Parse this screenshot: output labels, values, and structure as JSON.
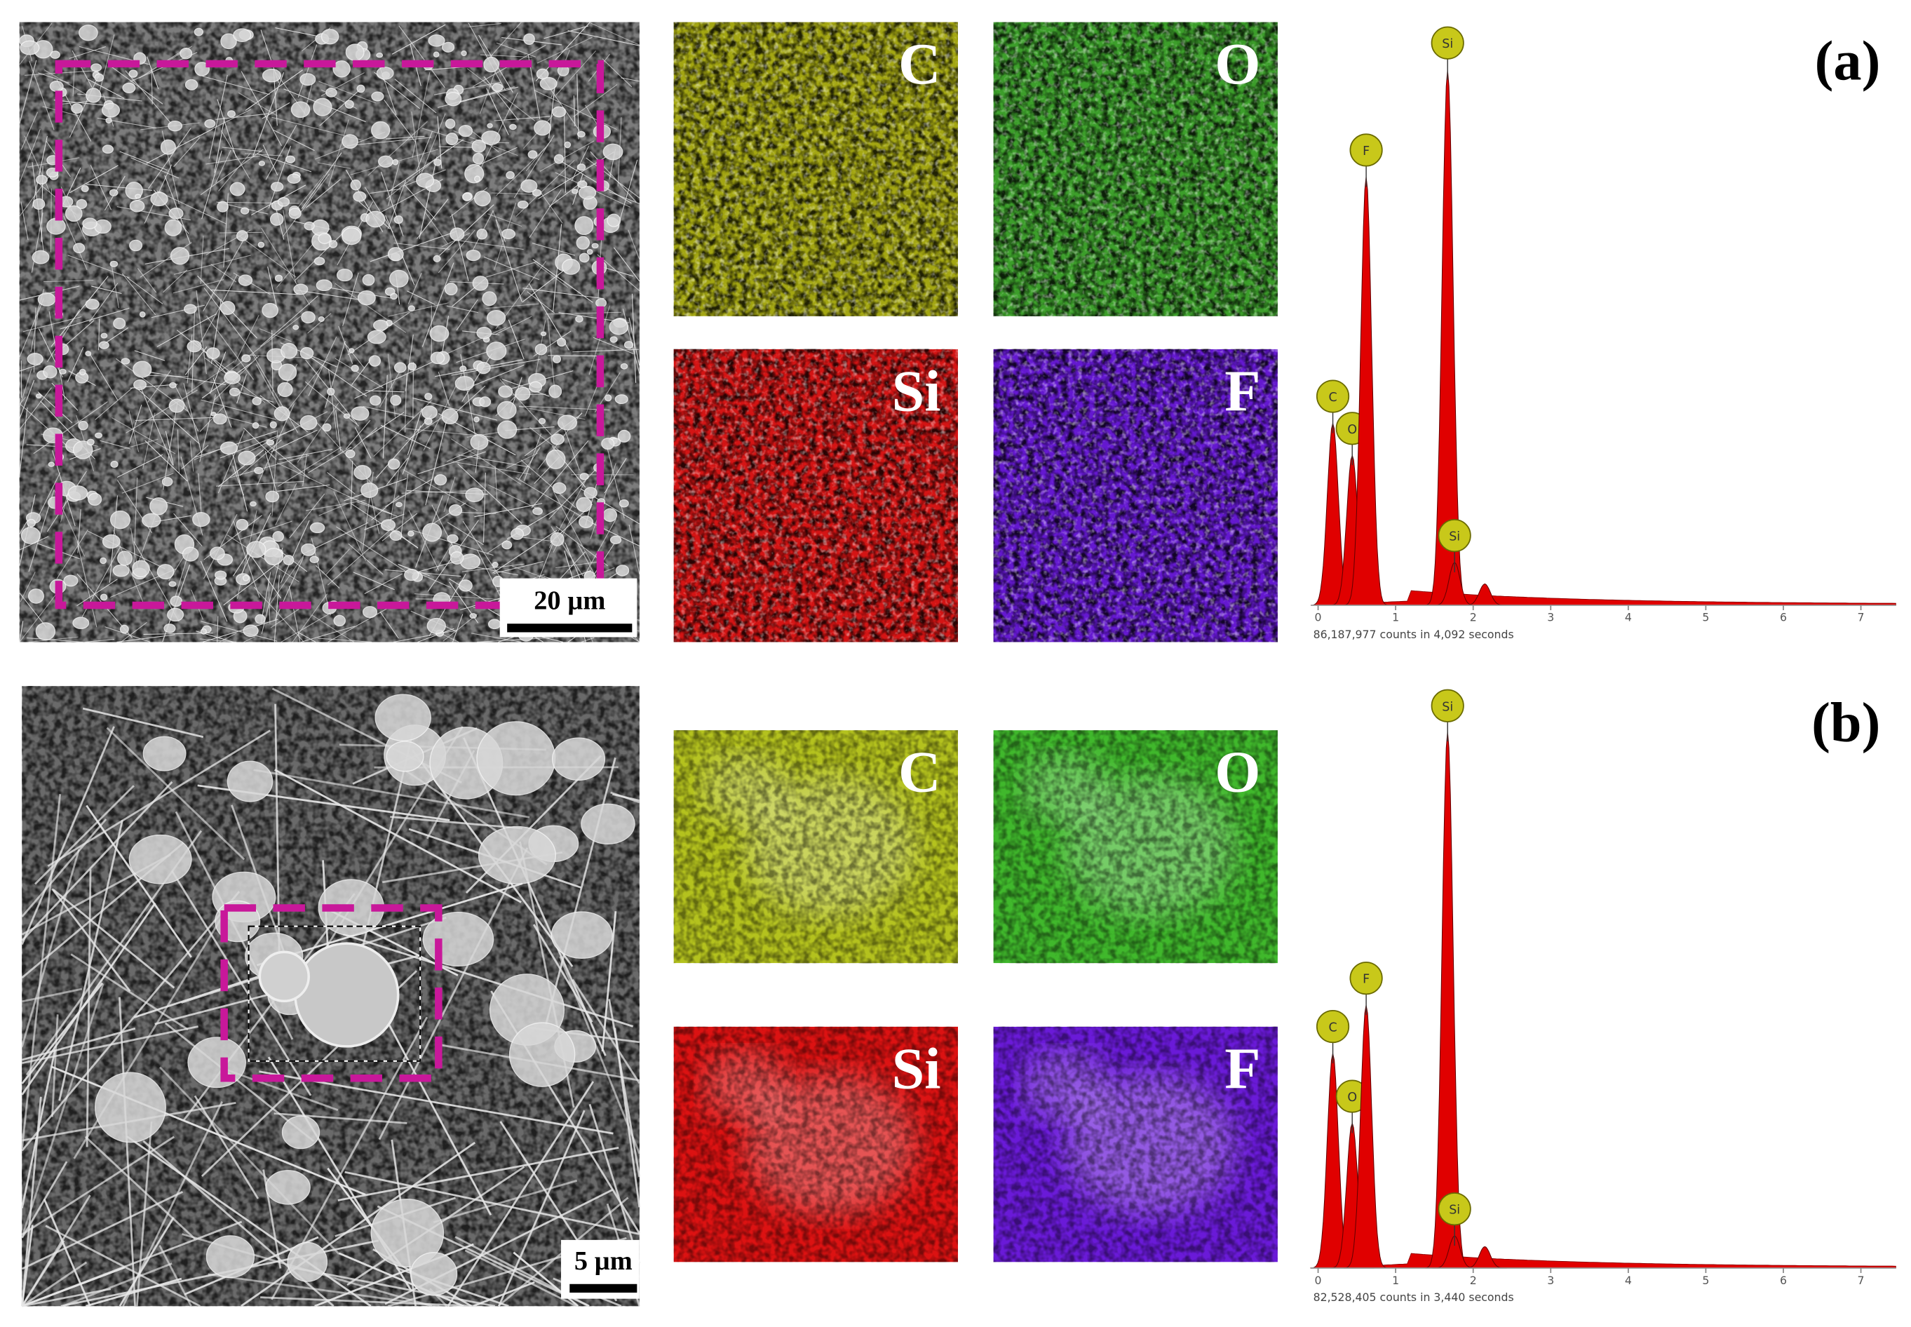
{
  "panels": [
    {
      "label": "(a)",
      "scale_bar": "20 µm",
      "maps": [
        {
          "element": "C",
          "color": "#a3a612"
        },
        {
          "element": "O",
          "color": "#3c9e2a"
        },
        {
          "element": "Si",
          "color": "#d41414"
        },
        {
          "element": "F",
          "color": "#6418d0"
        }
      ],
      "spectrum": {
        "xlim": [
          0,
          7.45
        ],
        "xticks": [
          0,
          1,
          2,
          3,
          4,
          5,
          6,
          7
        ],
        "color": "#e00000",
        "peaks": [
          {
            "label": "C",
            "x": 0.19,
            "height": 34
          },
          {
            "label": "O",
            "x": 0.44,
            "height": 28
          },
          {
            "label": "F",
            "x": 0.62,
            "height": 80
          },
          {
            "label": "Si",
            "x": 1.67,
            "height": 100
          },
          {
            "label": "Si",
            "x": 1.76,
            "height": 8
          },
          {
            "label": null,
            "x": 2.15,
            "height": 4
          }
        ],
        "caption": "86,187,977 counts in 4,092 seconds"
      }
    },
    {
      "label": "(b)",
      "scale_bar": "5 µm",
      "maps": [
        {
          "element": "C",
          "color": "#b4c21e"
        },
        {
          "element": "O",
          "color": "#40b82c"
        },
        {
          "element": "Si",
          "color": "#dc1212"
        },
        {
          "element": "F",
          "color": "#6a1ad8"
        }
      ],
      "spectrum": {
        "xlim": [
          0,
          7.45
        ],
        "xticks": [
          0,
          1,
          2,
          3,
          4,
          5,
          6,
          7
        ],
        "color": "#e00000",
        "peaks": [
          {
            "label": "C",
            "x": 0.19,
            "height": 40
          },
          {
            "label": "O",
            "x": 0.44,
            "height": 27
          },
          {
            "label": "F",
            "x": 0.62,
            "height": 49
          },
          {
            "label": "Si",
            "x": 1.67,
            "height": 100
          },
          {
            "label": "Si",
            "x": 1.76,
            "height": 6
          },
          {
            "label": null,
            "x": 2.15,
            "height": 4
          }
        ],
        "caption": "82,528,405 counts in 3,440 seconds"
      }
    }
  ]
}
